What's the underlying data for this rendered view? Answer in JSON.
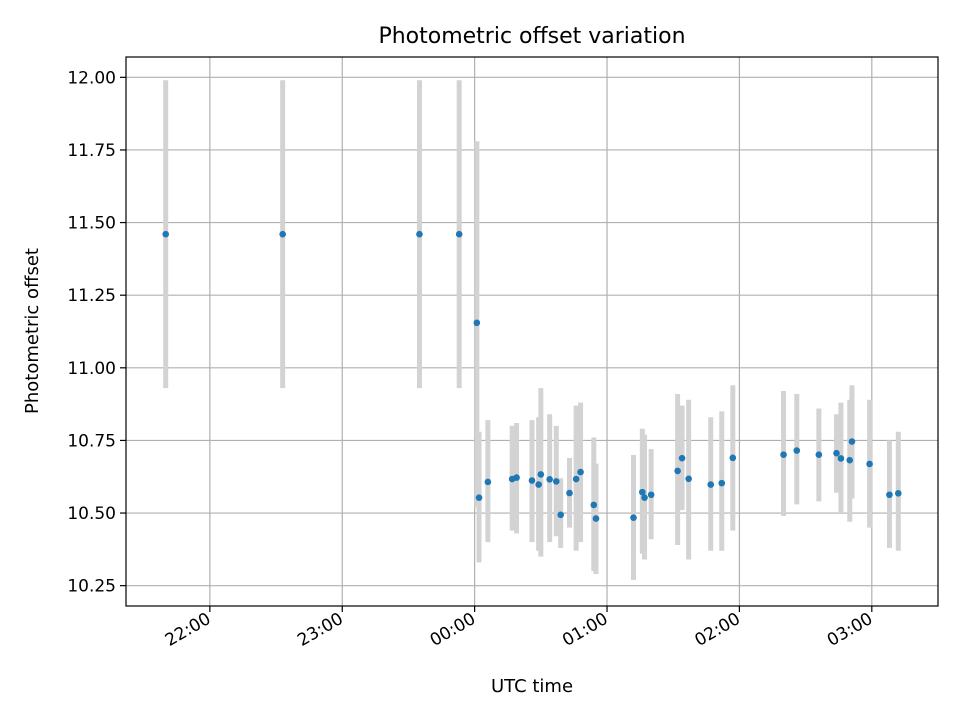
{
  "chart_data": {
    "type": "scatter",
    "title": "Photometric offset variation",
    "xlabel": "UTC time",
    "ylabel": "Photometric offset",
    "ylim": [
      10.18,
      12.07
    ],
    "xlim": [
      "21:22",
      "03:30"
    ],
    "grid": true,
    "x_tick_labels": [
      "22:00",
      "23:00",
      "00:00",
      "01:00",
      "02:00",
      "03:00"
    ],
    "y_tick_labels": [
      "10.25",
      "10.50",
      "10.75",
      "11.00",
      "11.25",
      "11.50",
      "11.75",
      "12.00"
    ],
    "colors": {
      "points": "#1f77b4",
      "errorbars": "#d3d3d3",
      "grid": "#b0b0b0"
    },
    "points": [
      {
        "t": "21:40",
        "y": 11.46,
        "lo": 10.93,
        "hi": 11.99
      },
      {
        "t": "22:33",
        "y": 11.46,
        "lo": 10.93,
        "hi": 11.99
      },
      {
        "t": "23:35",
        "y": 11.46,
        "lo": 10.93,
        "hi": 11.99
      },
      {
        "t": "23:53",
        "y": 11.46,
        "lo": 10.93,
        "hi": 11.99
      },
      {
        "t": "00:01",
        "y": 11.155,
        "lo": 10.52,
        "hi": 11.78
      },
      {
        "t": "00:02",
        "y": 10.553,
        "lo": 10.33,
        "hi": 10.78
      },
      {
        "t": "00:06",
        "y": 10.607,
        "lo": 10.4,
        "hi": 10.82
      },
      {
        "t": "00:17",
        "y": 10.617,
        "lo": 10.44,
        "hi": 10.8
      },
      {
        "t": "00:19",
        "y": 10.622,
        "lo": 10.43,
        "hi": 10.81
      },
      {
        "t": "00:26",
        "y": 10.612,
        "lo": 10.4,
        "hi": 10.82
      },
      {
        "t": "00:29",
        "y": 10.598,
        "lo": 10.37,
        "hi": 10.83
      },
      {
        "t": "00:30",
        "y": 10.633,
        "lo": 10.35,
        "hi": 10.93
      },
      {
        "t": "00:34",
        "y": 10.616,
        "lo": 10.4,
        "hi": 10.84
      },
      {
        "t": "00:37",
        "y": 10.609,
        "lo": 10.42,
        "hi": 10.8
      },
      {
        "t": "00:39",
        "y": 10.494,
        "lo": 10.38,
        "hi": 10.62
      },
      {
        "t": "00:43",
        "y": 10.569,
        "lo": 10.45,
        "hi": 10.69
      },
      {
        "t": "00:46",
        "y": 10.617,
        "lo": 10.37,
        "hi": 10.87
      },
      {
        "t": "00:48",
        "y": 10.641,
        "lo": 10.4,
        "hi": 10.88
      },
      {
        "t": "00:54",
        "y": 10.528,
        "lo": 10.3,
        "hi": 10.76
      },
      {
        "t": "00:55",
        "y": 10.481,
        "lo": 10.29,
        "hi": 10.67
      },
      {
        "t": "01:12",
        "y": 10.484,
        "lo": 10.27,
        "hi": 10.7
      },
      {
        "t": "01:16",
        "y": 10.572,
        "lo": 10.36,
        "hi": 10.79
      },
      {
        "t": "01:17",
        "y": 10.553,
        "lo": 10.34,
        "hi": 10.77
      },
      {
        "t": "01:20",
        "y": 10.563,
        "lo": 10.41,
        "hi": 10.72
      },
      {
        "t": "01:32",
        "y": 10.645,
        "lo": 10.39,
        "hi": 10.91
      },
      {
        "t": "01:34",
        "y": 10.689,
        "lo": 10.51,
        "hi": 10.87
      },
      {
        "t": "01:37",
        "y": 10.618,
        "lo": 10.34,
        "hi": 10.89
      },
      {
        "t": "01:47",
        "y": 10.598,
        "lo": 10.37,
        "hi": 10.83
      },
      {
        "t": "01:52",
        "y": 10.603,
        "lo": 10.37,
        "hi": 10.85
      },
      {
        "t": "01:57",
        "y": 10.69,
        "lo": 10.44,
        "hi": 10.94
      },
      {
        "t": "02:20",
        "y": 10.701,
        "lo": 10.49,
        "hi": 10.92
      },
      {
        "t": "02:26",
        "y": 10.715,
        "lo": 10.53,
        "hi": 10.91
      },
      {
        "t": "02:36",
        "y": 10.701,
        "lo": 10.54,
        "hi": 10.86
      },
      {
        "t": "02:44",
        "y": 10.706,
        "lo": 10.57,
        "hi": 10.84
      },
      {
        "t": "02:46",
        "y": 10.688,
        "lo": 10.5,
        "hi": 10.88
      },
      {
        "t": "02:50",
        "y": 10.682,
        "lo": 10.47,
        "hi": 10.89
      },
      {
        "t": "02:51",
        "y": 10.746,
        "lo": 10.55,
        "hi": 10.94
      },
      {
        "t": "02:59",
        "y": 10.669,
        "lo": 10.45,
        "hi": 10.89
      },
      {
        "t": "03:08",
        "y": 10.563,
        "lo": 10.38,
        "hi": 10.75
      },
      {
        "t": "03:12",
        "y": 10.568,
        "lo": 10.37,
        "hi": 10.78
      }
    ]
  }
}
